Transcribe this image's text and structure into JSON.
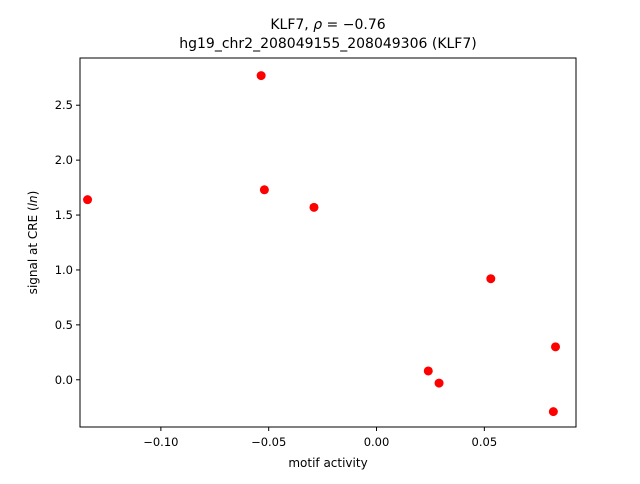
{
  "chart_data": {
    "type": "scatter",
    "title_prefix": "KLF7, ",
    "title_rho_symbol": "ρ",
    "title_rho_value": " = −0.76",
    "subtitle": "hg19_chr2_208049155_208049306 (KLF7)",
    "xlabel": "motif activity",
    "ylabel_prefix": "signal at CRE (",
    "ylabel_italic": "ln",
    "ylabel_suffix": ")",
    "xlim": [
      -0.1375,
      0.0925
    ],
    "ylim": [
      -0.43,
      2.93
    ],
    "xticks": [
      {
        "value": -0.1,
        "label": "−0.10"
      },
      {
        "value": -0.05,
        "label": "−0.05"
      },
      {
        "value": 0.0,
        "label": "0.00"
      },
      {
        "value": 0.05,
        "label": "0.05"
      }
    ],
    "yticks": [
      {
        "value": 0.0,
        "label": "0.0"
      },
      {
        "value": 0.5,
        "label": "0.5"
      },
      {
        "value": 1.0,
        "label": "1.0"
      },
      {
        "value": 1.5,
        "label": "1.5"
      },
      {
        "value": 2.0,
        "label": "2.0"
      },
      {
        "value": 2.5,
        "label": "2.5"
      }
    ],
    "grid": false,
    "point_color": "#ff0000",
    "points": [
      {
        "x": -0.134,
        "y": 1.64
      },
      {
        "x": -0.0535,
        "y": 2.77
      },
      {
        "x": -0.052,
        "y": 1.73
      },
      {
        "x": -0.029,
        "y": 1.57
      },
      {
        "x": 0.024,
        "y": 0.08
      },
      {
        "x": 0.029,
        "y": -0.03
      },
      {
        "x": 0.053,
        "y": 0.92
      },
      {
        "x": 0.083,
        "y": 0.3
      },
      {
        "x": 0.082,
        "y": -0.29
      }
    ]
  }
}
